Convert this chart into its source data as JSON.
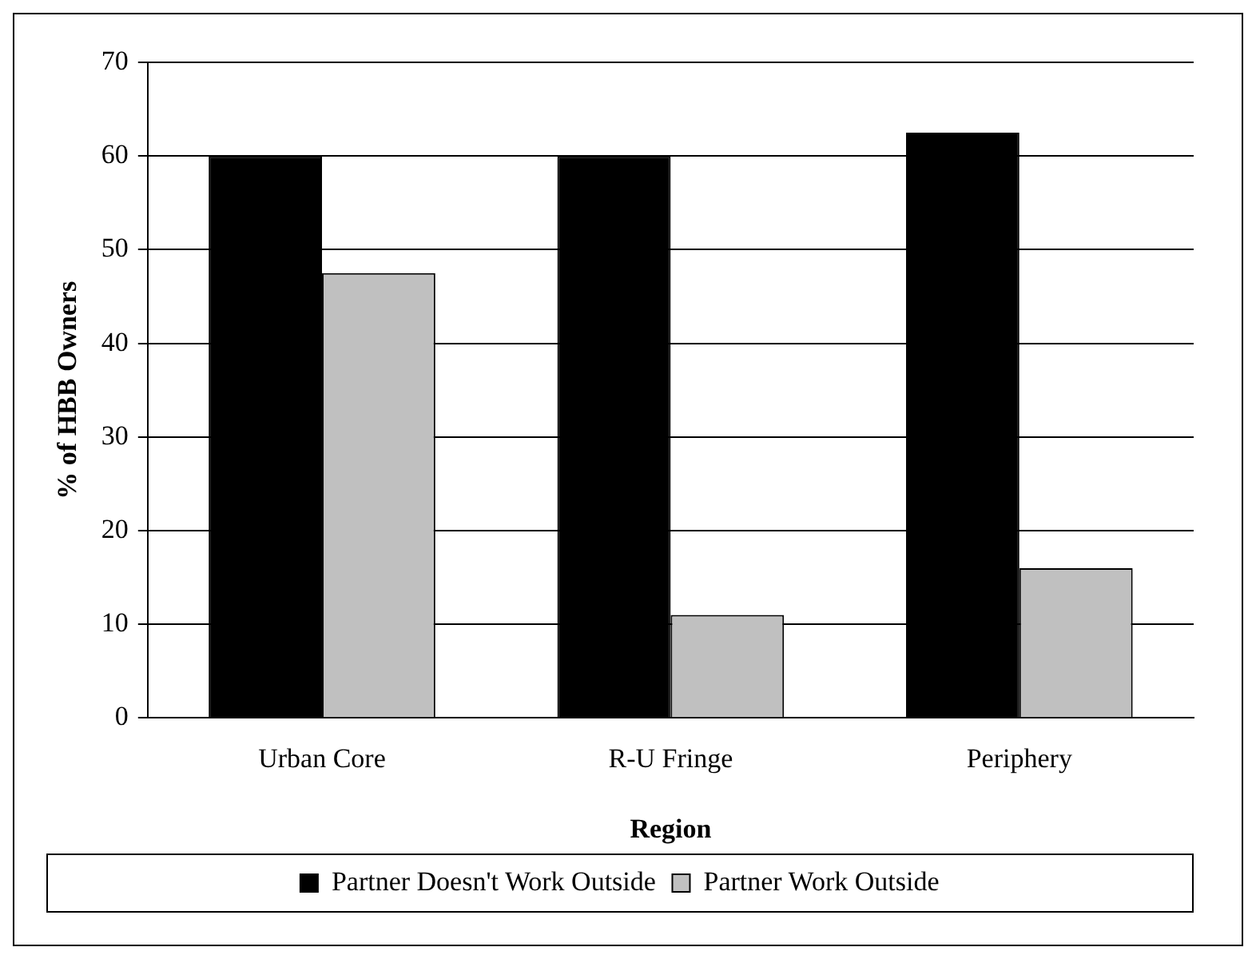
{
  "chart_data": {
    "type": "bar",
    "xlabel": "Region",
    "ylabel": "% of HBB Owners",
    "categories": [
      "Urban Core",
      "R-U Fringe",
      "Periphery"
    ],
    "series": [
      {
        "name": "Partner Doesn't Work Outside",
        "color": "#000000",
        "values": [
          60,
          60,
          62.5
        ]
      },
      {
        "name": "Partner Work Outside",
        "color": "#c0c0c0",
        "values": [
          47.5,
          11,
          16
        ]
      }
    ],
    "ylim": [
      0,
      70
    ],
    "yticks": [
      0,
      10,
      20,
      30,
      40,
      50,
      60,
      70
    ],
    "grid": "y",
    "legend": "bottom"
  }
}
